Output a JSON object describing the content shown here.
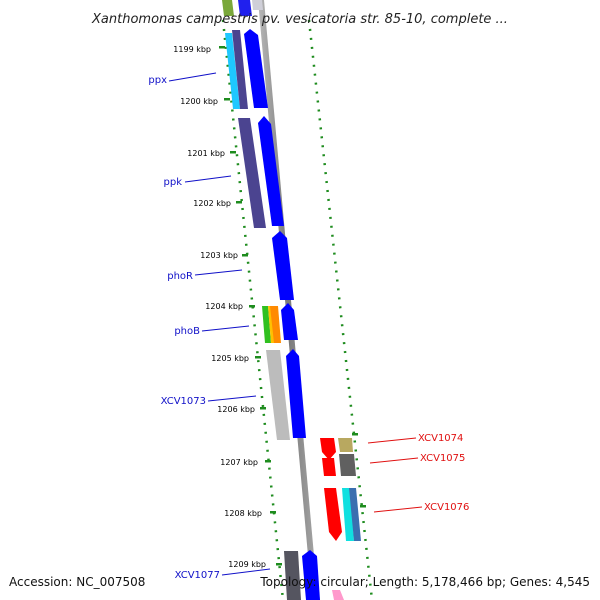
{
  "header": {
    "title": "Xanthomonas campestris pv. vesicatoria str. 85-10, complete ..."
  },
  "scale": {
    "ticks": [
      {
        "label": "1199 kbp"
      },
      {
        "label": "1200 kbp"
      },
      {
        "label": "1201 kbp"
      },
      {
        "label": "1202 kbp"
      },
      {
        "label": "1203 kbp"
      },
      {
        "label": "1204 kbp"
      },
      {
        "label": "1205 kbp"
      },
      {
        "label": "1206 kbp"
      },
      {
        "label": "1207 kbp"
      },
      {
        "label": "1208 kbp"
      },
      {
        "label": "1209 kbp"
      }
    ]
  },
  "genes": {
    "left": [
      {
        "label": "ppx"
      },
      {
        "label": "ppk"
      },
      {
        "label": "phoR"
      },
      {
        "label": "phoB"
      },
      {
        "label": "XCV1073"
      },
      {
        "label": "XCV1077"
      }
    ],
    "right": [
      {
        "label": "XCV1074"
      },
      {
        "label": "XCV1075"
      },
      {
        "label": "XCV1076"
      }
    ]
  },
  "colors": {
    "left_label": "#1010c8",
    "right_label": "#e01010",
    "axis_dots": "#1e8c1e",
    "backbone": "#8a8a8a",
    "gene_blue": "#0000ff",
    "gene_navy": "#4b4490",
    "gene_red": "#ff0000"
  },
  "footer": {
    "accession": "Accession: NC_007508",
    "summary": "Topology: circular; Length: 5,178,466 bp; Genes: 4,545"
  }
}
